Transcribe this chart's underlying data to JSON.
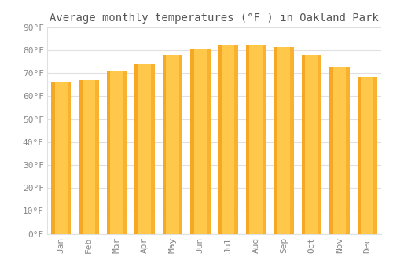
{
  "title": "Average monthly temperatures (°F ) in Oakland Park",
  "months": [
    "Jan",
    "Feb",
    "Mar",
    "Apr",
    "May",
    "Jun",
    "Jul",
    "Aug",
    "Sep",
    "Oct",
    "Nov",
    "Dec"
  ],
  "values": [
    66.5,
    67.0,
    71.0,
    74.0,
    78.0,
    80.5,
    82.5,
    82.5,
    81.5,
    78.0,
    73.0,
    68.5
  ],
  "bar_color_light": "#FFC84A",
  "bar_color_dark": "#F0920A",
  "ylim": [
    0,
    90
  ],
  "ytick_step": 10,
  "background_color": "#FFFFFF",
  "grid_color": "#E0E0E0",
  "font_color": "#888888",
  "title_fontsize": 10,
  "tick_fontsize": 8
}
